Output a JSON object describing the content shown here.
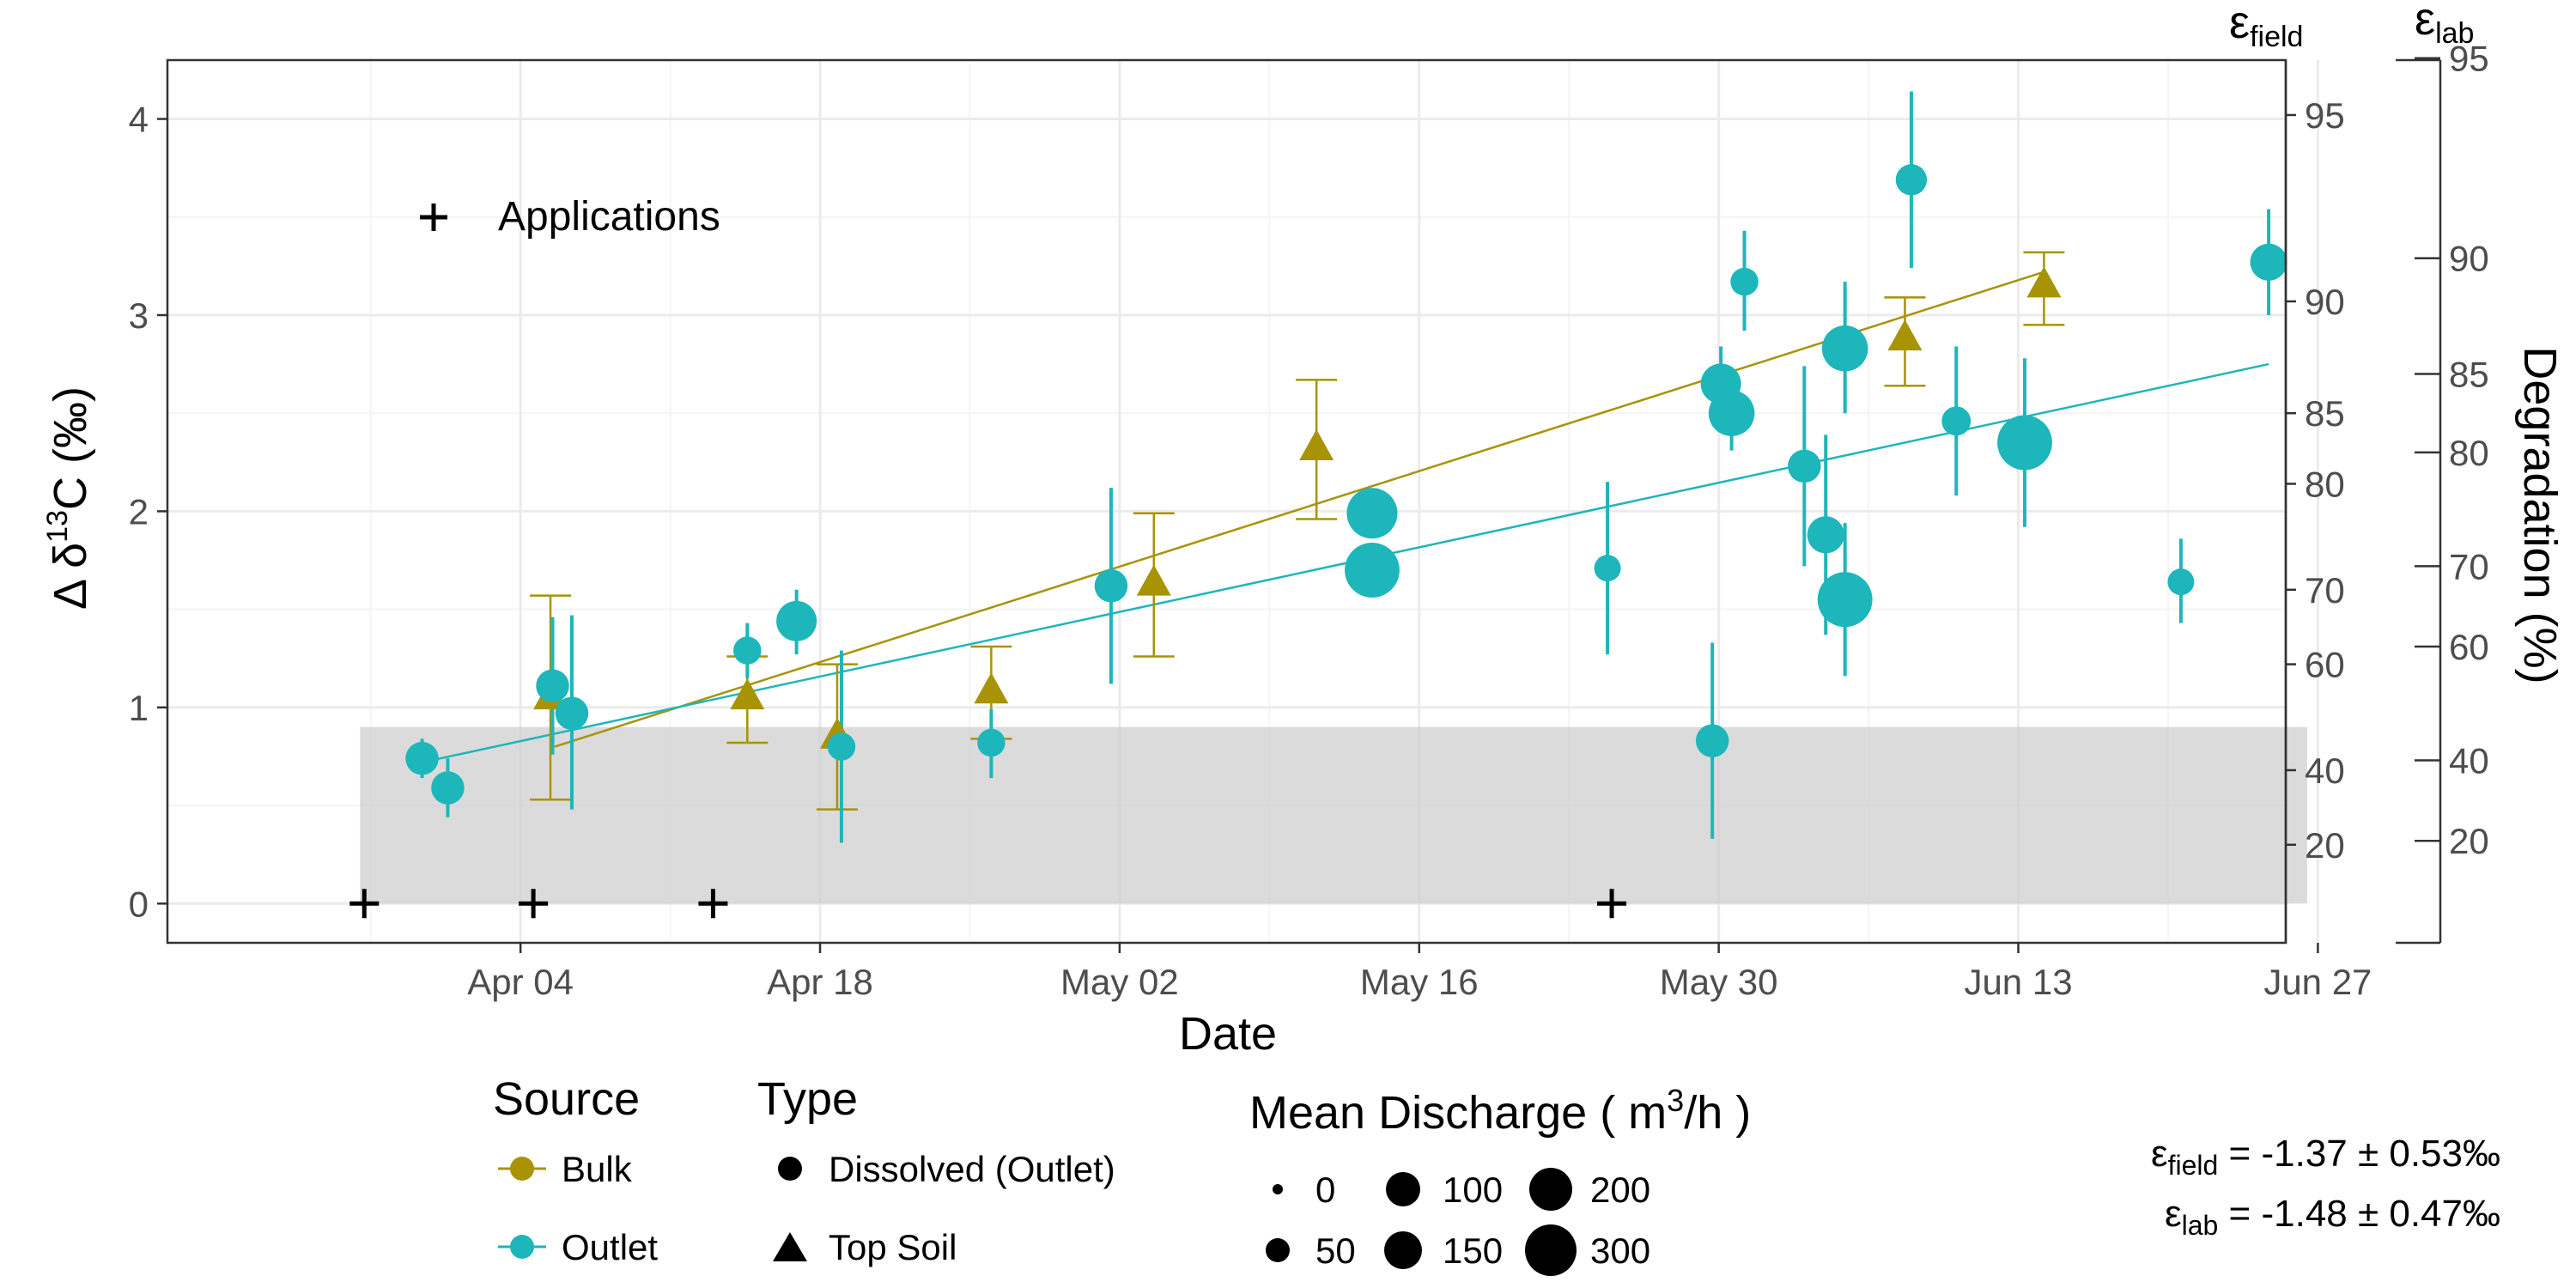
{
  "chart_data": {
    "type": "scatter",
    "xlabel": "Date",
    "ylabel_parts": {
      "pre": "Δ δ",
      "sup": "13",
      "post": "C (‰)"
    },
    "ylim": [
      -0.2,
      4.3
    ],
    "yticks": [
      0,
      1,
      2,
      3,
      4
    ],
    "xlim_days": [
      -16.5,
      82.5
    ],
    "xticks": [
      {
        "day": 0,
        "label": "Apr 04"
      },
      {
        "day": 14,
        "label": "Apr 18"
      },
      {
        "day": 28,
        "label": "May 02"
      },
      {
        "day": 42,
        "label": "May 16"
      },
      {
        "day": 56,
        "label": "May 30"
      },
      {
        "day": 70,
        "label": "Jun 13"
      },
      {
        "day": 84,
        "label": "Jun 27"
      }
    ],
    "grid": true,
    "shaded_region": {
      "x_from_day": -7.5,
      "x_to_day": 83.5,
      "y_from": 0,
      "y_to": 0.9
    },
    "applications": {
      "label": "Applications",
      "days": [
        -7.3,
        0.6,
        9.0,
        51.0
      ],
      "y": 0
    },
    "series": [
      {
        "source": "Bulk",
        "color": "#A89305",
        "type": "Top Soil",
        "points": [
          {
            "day": 1.4,
            "y": 1.05,
            "lo": 0.53,
            "hi": 1.57
          },
          {
            "day": 10.6,
            "y": 1.05,
            "lo": 0.82,
            "hi": 1.26
          },
          {
            "day": 14.8,
            "y": 0.85,
            "lo": 0.48,
            "hi": 1.22
          },
          {
            "day": 22.0,
            "y": 1.08,
            "lo": 0.84,
            "hi": 1.31
          },
          {
            "day": 29.6,
            "y": 1.63,
            "lo": 1.26,
            "hi": 1.99
          },
          {
            "day": 37.2,
            "y": 2.32,
            "lo": 1.96,
            "hi": 2.67
          },
          {
            "day": 64.7,
            "y": 2.88,
            "lo": 2.64,
            "hi": 3.09
          },
          {
            "day": 71.2,
            "y": 3.15,
            "lo": 2.95,
            "hi": 3.32
          }
        ],
        "trend": {
          "from_day": 1.6,
          "y_from": 0.8,
          "to_day": 71.2,
          "y_to": 3.22
        }
      },
      {
        "source": "Outlet",
        "color": "#1DB6BB",
        "type": "Dissolved (Outlet)",
        "points": [
          {
            "day": -4.6,
            "y": 0.74,
            "lo": 0.64,
            "hi": 0.84,
            "q": 50
          },
          {
            "day": -3.4,
            "y": 0.59,
            "lo": 0.44,
            "hi": 0.74,
            "q": 50
          },
          {
            "day": 1.5,
            "y": 1.11,
            "lo": 0.76,
            "hi": 1.46,
            "q": 50
          },
          {
            "day": 2.4,
            "y": 0.97,
            "lo": 0.48,
            "hi": 1.47,
            "q": 50
          },
          {
            "day": 10.6,
            "y": 1.29,
            "lo": 1.15,
            "hi": 1.43,
            "q": 25
          },
          {
            "day": 12.9,
            "y": 1.44,
            "lo": 1.27,
            "hi": 1.6,
            "q": 100
          },
          {
            "day": 15.0,
            "y": 0.8,
            "lo": 0.31,
            "hi": 1.29,
            "q": 25
          },
          {
            "day": 22.0,
            "y": 0.82,
            "lo": 0.64,
            "hi": 0.99,
            "q": 25
          },
          {
            "day": 27.6,
            "y": 1.62,
            "lo": 1.12,
            "hi": 2.12,
            "q": 50
          },
          {
            "day": 39.8,
            "y": 1.99,
            "lo": 1.95,
            "hi": 2.03,
            "q": 200
          },
          {
            "day": 39.8,
            "y": 1.7,
            "lo": 1.66,
            "hi": 1.74,
            "q": 250
          },
          {
            "day": 50.8,
            "y": 1.71,
            "lo": 1.27,
            "hi": 2.15,
            "q": 20
          },
          {
            "day": 55.7,
            "y": 0.83,
            "lo": 0.33,
            "hi": 1.33,
            "q": 50
          },
          {
            "day": 56.1,
            "y": 2.65,
            "lo": 2.46,
            "hi": 2.84,
            "q": 100
          },
          {
            "day": 56.6,
            "y": 2.5,
            "lo": 2.31,
            "hi": 2.66,
            "q": 150
          },
          {
            "day": 57.2,
            "y": 3.17,
            "lo": 2.92,
            "hi": 3.43,
            "q": 25
          },
          {
            "day": 60.0,
            "y": 2.23,
            "lo": 1.72,
            "hi": 2.74,
            "q": 50
          },
          {
            "day": 61.0,
            "y": 1.88,
            "lo": 1.37,
            "hi": 2.39,
            "q": 75
          },
          {
            "day": 61.9,
            "y": 2.83,
            "lo": 2.5,
            "hi": 3.17,
            "q": 150
          },
          {
            "day": 61.9,
            "y": 1.55,
            "lo": 1.16,
            "hi": 1.94,
            "q": 250
          },
          {
            "day": 65.0,
            "y": 3.69,
            "lo": 3.24,
            "hi": 4.14,
            "q": 40
          },
          {
            "day": 67.1,
            "y": 2.46,
            "lo": 2.08,
            "hi": 2.84,
            "q": 30
          },
          {
            "day": 70.3,
            "y": 2.35,
            "lo": 1.92,
            "hi": 2.78,
            "q": 250
          },
          {
            "day": 77.6,
            "y": 1.64,
            "lo": 1.43,
            "hi": 1.86,
            "q": 20
          },
          {
            "day": 81.7,
            "y": 3.27,
            "lo": 3.0,
            "hi": 3.54,
            "q": 75
          }
        ],
        "trend": {
          "from_day": -4.6,
          "y_from": 0.72,
          "to_day": 81.7,
          "y_to": 2.75
        }
      }
    ],
    "secondary_axes": [
      {
        "name": "ε",
        "sub": "field",
        "ticks": [
          {
            "label": "20",
            "y": 0.3
          },
          {
            "label": "40",
            "y": 0.68
          },
          {
            "label": "60",
            "y": 1.22
          },
          {
            "label": "70",
            "y": 1.6
          },
          {
            "label": "80",
            "y": 2.14
          },
          {
            "label": "85",
            "y": 2.5
          },
          {
            "label": "90",
            "y": 3.07
          },
          {
            "label": "95",
            "y": 4.02
          }
        ]
      },
      {
        "name": "ε",
        "sub": "lab",
        "title": "Degradation (%)",
        "ticks": [
          {
            "label": "20",
            "y": 0.32
          },
          {
            "label": "40",
            "y": 0.73
          },
          {
            "label": "60",
            "y": 1.31
          },
          {
            "label": "70",
            "y": 1.72
          },
          {
            "label": "80",
            "y": 2.3
          },
          {
            "label": "85",
            "y": 2.7
          },
          {
            "label": "90",
            "y": 3.29
          },
          {
            "label": "95",
            "y": 4.31
          }
        ]
      }
    ],
    "legend": {
      "placement": "bottom",
      "source": {
        "title": "Source",
        "entries": [
          {
            "label": "Bulk",
            "color": "#A89305"
          },
          {
            "label": "Outlet",
            "color": "#1DB6BB"
          }
        ]
      },
      "type": {
        "title": "Type",
        "entries": [
          {
            "label": "Dissolved (Outlet)",
            "shape": "circle"
          },
          {
            "label": "Top Soil",
            "shape": "triangle"
          }
        ]
      },
      "discharge": {
        "title_pre": "Mean Discharge ( m",
        "title_sup": "3",
        "title_post": "/h )",
        "entries": [
          {
            "label": "0",
            "q": 0
          },
          {
            "label": "50",
            "q": 50
          },
          {
            "label": "100",
            "q": 100
          },
          {
            "label": "150",
            "q": 150
          },
          {
            "label": "200",
            "q": 200
          },
          {
            "label": "300",
            "q": 300
          }
        ]
      }
    },
    "epsilon_results": [
      {
        "name": "ε",
        "sub": "field",
        "value": " = -1.37 ± 0.53‰"
      },
      {
        "name": "ε",
        "sub": "lab",
        "value": " = -1.48 ± 0.47‰"
      }
    ]
  }
}
